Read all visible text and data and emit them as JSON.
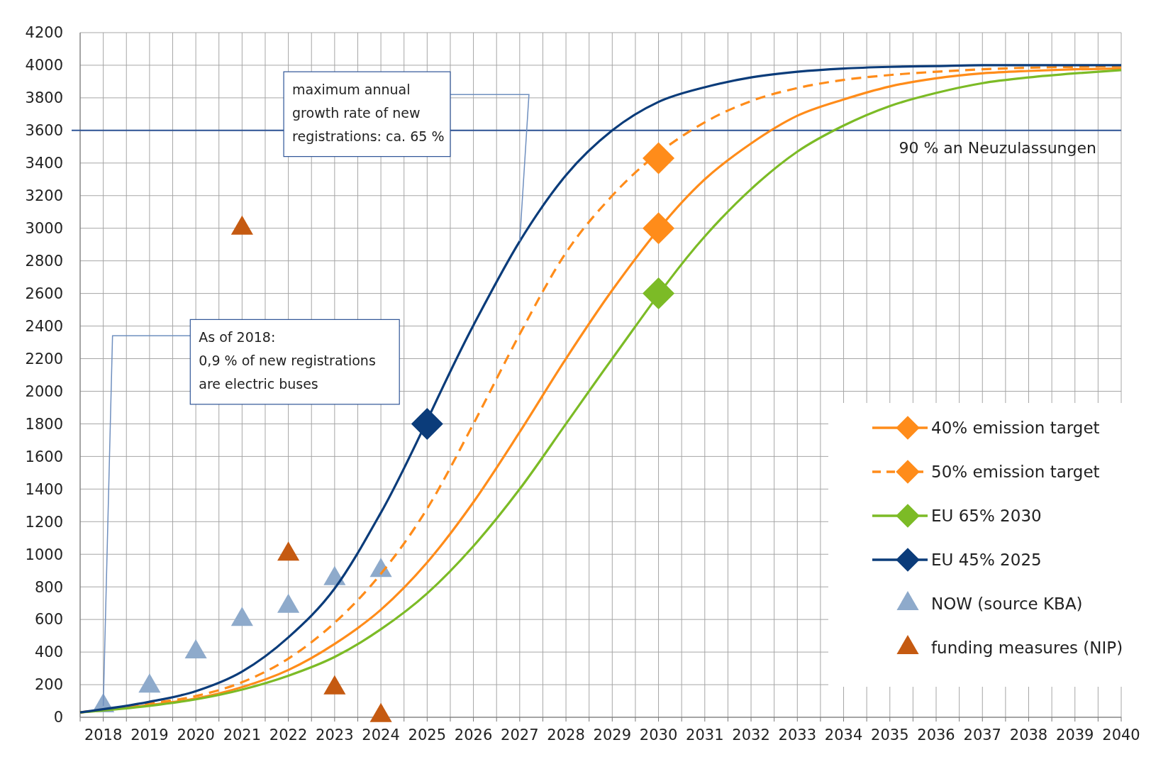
{
  "chart_data": {
    "type": "line",
    "xlim": [
      2017.5,
      2040
    ],
    "ylim": [
      0,
      4200
    ],
    "xticks": [
      {
        "value": 2017.5,
        "label": null
      },
      2018,
      {
        "value": 2018.5,
        "label": null
      },
      2019,
      {
        "value": 2019.5,
        "label": null
      },
      2020,
      {
        "value": 2020.5,
        "label": null
      },
      2021,
      {
        "value": 2021.5,
        "label": null
      },
      2022,
      {
        "value": 2022.5,
        "label": null
      },
      2023,
      {
        "value": 2023.5,
        "label": null
      },
      2024,
      {
        "value": 2024.5,
        "label": null
      },
      2025,
      {
        "value": 2025.5,
        "label": null
      },
      2026,
      {
        "value": 2026.5,
        "label": null
      },
      2027,
      {
        "value": 2027.5,
        "label": null
      },
      2028,
      {
        "value": 2028.5,
        "label": null
      },
      2029,
      {
        "value": 2029.5,
        "label": null
      },
      2030,
      {
        "value": 2030.5,
        "label": null
      },
      2031,
      {
        "value": 2031.5,
        "label": null
      },
      2032,
      {
        "value": 2032.5,
        "label": null
      },
      2033,
      {
        "value": 2033.5,
        "label": null
      },
      2034,
      {
        "value": 2034.5,
        "label": null
      },
      2035,
      {
        "value": 2035.5,
        "label": null
      },
      2036,
      {
        "value": 2036.5,
        "label": null
      },
      2037,
      {
        "value": 2037.5,
        "label": null
      },
      2038,
      {
        "value": 2038.5,
        "label": null
      },
      2039,
      {
        "value": 2039.5,
        "label": null
      },
      2040
    ],
    "yticks": [
      0,
      200,
      400,
      600,
      800,
      1000,
      1200,
      1400,
      1600,
      1800,
      2000,
      2200,
      2400,
      2600,
      2800,
      3000,
      3200,
      3400,
      3600,
      3800,
      4000,
      4200
    ],
    "grid": true,
    "legend": "bottom right",
    "series": [
      {
        "name": "40% emission target",
        "color": "#ff8c1a",
        "line_style": "solid",
        "x": [
          2017.5,
          2019,
          2020,
          2021,
          2022,
          2023,
          2024,
          2025,
          2026,
          2027,
          2028,
          2029,
          2031,
          2032,
          2033,
          2034,
          2035,
          2036,
          2037,
          2038,
          2039,
          2040
        ],
        "values": [
          30,
          75,
          115,
          185,
          290,
          450,
          660,
          950,
          1320,
          1750,
          2200,
          2620,
          3300,
          3520,
          3690,
          3790,
          3870,
          3920,
          3950,
          3965,
          3975,
          3980
        ]
      },
      {
        "name": "50% emission target",
        "color": "#ff8c1a",
        "line_style": "dashed",
        "x": [
          2017.5,
          2019,
          2020,
          2021,
          2022,
          2023,
          2024,
          2025,
          2026,
          2027,
          2028,
          2029,
          2031,
          2032,
          2033,
          2034,
          2035,
          2036,
          2037,
          2038,
          2039,
          2040
        ],
        "values": [
          30,
          85,
          130,
          215,
          360,
          580,
          880,
          1280,
          1800,
          2350,
          2850,
          3200,
          3650,
          3780,
          3860,
          3910,
          3940,
          3960,
          3975,
          3985,
          3990,
          3995
        ]
      },
      {
        "name": "EU 65% 2030",
        "color": "#7cbb26",
        "line_style": "solid",
        "x": [
          2017.5,
          2019,
          2020,
          2021,
          2022,
          2023,
          2024,
          2025,
          2026,
          2027,
          2028,
          2029,
          2031,
          2032,
          2033,
          2034,
          2035,
          2036,
          2037,
          2038,
          2039,
          2040
        ],
        "values": [
          30,
          70,
          110,
          170,
          255,
          370,
          540,
          760,
          1050,
          1400,
          1800,
          2200,
          2950,
          3240,
          3470,
          3630,
          3750,
          3830,
          3890,
          3925,
          3950,
          3970
        ]
      },
      {
        "name": "EU 45% 2025",
        "color": "#0b3c7a",
        "line_style": "solid",
        "x": [
          2017.5,
          2019,
          2020,
          2021,
          2022,
          2023,
          2024,
          2026,
          2027,
          2028,
          2029,
          2030,
          2031,
          2032,
          2033,
          2034,
          2035,
          2036,
          2037,
          2038,
          2039,
          2040
        ],
        "values": [
          30,
          95,
          160,
          280,
          490,
          790,
          1255,
          2405,
          2920,
          3325,
          3600,
          3775,
          3865,
          3925,
          3960,
          3980,
          3990,
          3995,
          4000,
          4000,
          4000,
          4000
        ]
      },
      {
        "type": "scatter",
        "color": "#ff8c1a",
        "marker": "diamond",
        "x": [
          2030
        ],
        "values": [
          3000
        ]
      },
      {
        "type": "scatter",
        "color": "#ff8c1a",
        "marker": "diamond",
        "x": [
          2030
        ],
        "values": [
          3430
        ]
      },
      {
        "type": "scatter",
        "color": "#7cbb26",
        "marker": "diamond",
        "x": [
          2030
        ],
        "values": [
          2600
        ]
      },
      {
        "type": "scatter",
        "color": "#0b3c7a",
        "marker": "diamond",
        "x": [
          2025
        ],
        "values": [
          1800
        ]
      },
      {
        "name": "NOW (source KBA)",
        "type": "scatter",
        "color": "#8eaacb",
        "marker": "triangle",
        "x": [
          2018,
          2019,
          2020,
          2021,
          2022,
          2023,
          2024
        ],
        "values": [
          70,
          190,
          400,
          600,
          680,
          850,
          900
        ]
      },
      {
        "name": "funding measures (NIP)",
        "type": "scatter",
        "color": "#c55a11",
        "marker": "triangle",
        "x": [
          2021,
          2022,
          2023,
          2024
        ],
        "values": [
          3000,
          1000,
          180,
          10
        ]
      }
    ],
    "ref_lines": [
      {
        "axis": "y",
        "value": 3600,
        "label": "90 % an Neuzulassungen",
        "color": "#2f5597"
      }
    ],
    "annotations": [
      {
        "text": "maximum annual growth rate of new registrations: ca. 65 %",
        "x": 2027,
        "y": 2920
      },
      {
        "text": "As of 2018: 0,9 % of new registrations are electric buses",
        "x": 2018,
        "y": 70
      }
    ]
  }
}
